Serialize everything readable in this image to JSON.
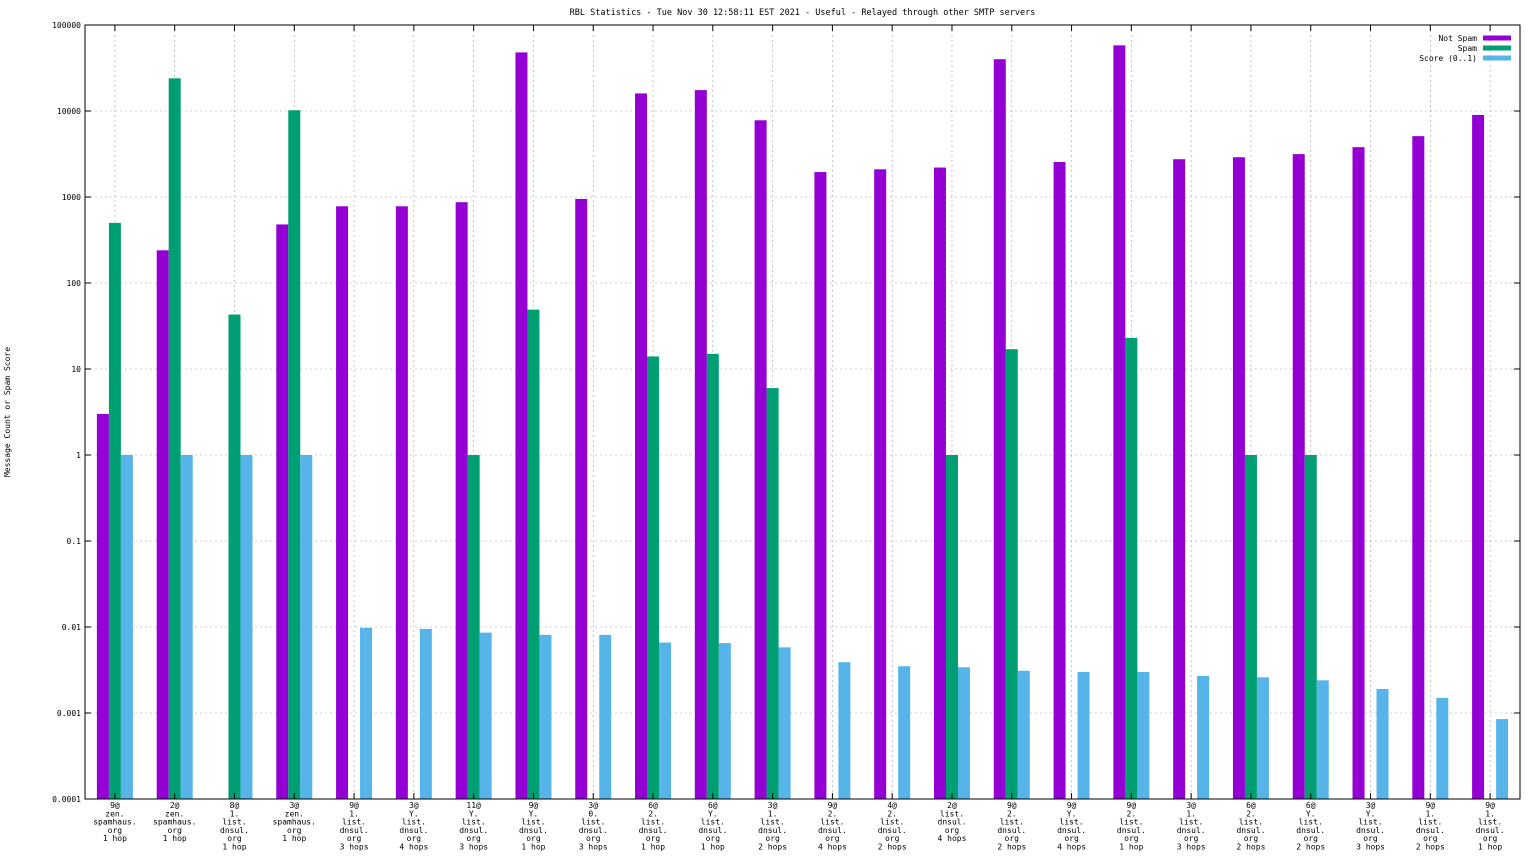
{
  "chart_data": {
    "type": "bar",
    "title": "RBL Statistics - Tue Nov 30 12:58:11 EST 2021 - Useful - Relayed through other SMTP servers",
    "xlabel": "",
    "ylabel": "Message Count or Spam Score",
    "y_scale": "log",
    "ylim": [
      0.0001,
      100000
    ],
    "y_ticks": [
      "0.0001",
      "0.001",
      "0.01",
      "0.1",
      "1",
      "10",
      "100",
      "1000",
      "10000",
      "100000"
    ],
    "grid": true,
    "legend_position": "top-right",
    "categories": [
      [
        "9@",
        "zen.",
        "spamhaus.",
        "org",
        "1 hop"
      ],
      [
        "2@",
        "zen.",
        "spamhaus.",
        "org",
        "1 hop"
      ],
      [
        "8@",
        "1.",
        "list.",
        "dnsul.",
        "org",
        "1 hop"
      ],
      [
        "3@",
        "zen.",
        "spamhaus.",
        "org",
        "1 hop"
      ],
      [
        "9@",
        "1.",
        "list.",
        "dnsul.",
        "org",
        "3 hops"
      ],
      [
        "3@",
        "Y.",
        "list.",
        "dnsul.",
        "org",
        "4 hops"
      ],
      [
        "11@",
        "Y.",
        "list.",
        "dnsul.",
        "org",
        "3 hops"
      ],
      [
        "9@",
        "Y.",
        "list.",
        "dnsul.",
        "org",
        "1 hop"
      ],
      [
        "3@",
        "0.",
        "list.",
        "dnsul.",
        "org",
        "3 hops"
      ],
      [
        "6@",
        "2.",
        "list.",
        "dnsul.",
        "org",
        "1 hop"
      ],
      [
        "6@",
        "Y.",
        "list.",
        "dnsul.",
        "org",
        "1 hop"
      ],
      [
        "3@",
        "1.",
        "list.",
        "dnsul.",
        "org",
        "2 hops"
      ],
      [
        "9@",
        "2.",
        "list.",
        "dnsul.",
        "org",
        "4 hops"
      ],
      [
        "4@",
        "2.",
        "list.",
        "dnsul.",
        "org",
        "2 hops"
      ],
      [
        "2@",
        "list.",
        "dnsul.",
        "org",
        "4 hops"
      ],
      [
        "9@",
        "2.",
        "list.",
        "dnsul.",
        "org",
        "2 hops"
      ],
      [
        "9@",
        "Y.",
        "list.",
        "dnsul.",
        "org",
        "4 hops"
      ],
      [
        "9@",
        "2.",
        "list.",
        "dnsul.",
        "org",
        "1 hop"
      ],
      [
        "3@",
        "1.",
        "list.",
        "dnsul.",
        "org",
        "3 hops"
      ],
      [
        "6@",
        "2.",
        "list.",
        "dnsul.",
        "org",
        "2 hops"
      ],
      [
        "6@",
        "Y.",
        "list.",
        "dnsul.",
        "org",
        "2 hops"
      ],
      [
        "3@",
        "Y.",
        "list.",
        "dnsul.",
        "org",
        "3 hops"
      ],
      [
        "9@",
        "1.",
        "list.",
        "dnsul.",
        "org",
        "2 hops"
      ],
      [
        "9@",
        "1.",
        "list.",
        "dnsul.",
        "org",
        "1 hop"
      ]
    ],
    "series": [
      {
        "name": "Not Spam",
        "color": "#9400d3",
        "values": [
          3,
          240,
          null,
          480,
          780,
          780,
          870,
          48000,
          950,
          16000,
          17500,
          7800,
          1950,
          2100,
          2200,
          40000,
          2550,
          58000,
          2750,
          2900,
          3150,
          3800,
          5100,
          9000
        ]
      },
      {
        "name": "Spam",
        "color": "#009e73",
        "values": [
          500,
          24000,
          43,
          10200,
          null,
          null,
          1,
          49,
          null,
          14,
          15,
          6,
          null,
          null,
          1,
          17,
          null,
          23,
          null,
          1,
          1,
          null,
          null,
          null
        ]
      },
      {
        "name": "Score (0..1)",
        "color": "#56b4e9",
        "values": [
          1,
          1,
          1,
          1,
          0.0098,
          0.0095,
          0.0086,
          0.0081,
          0.0081,
          0.0066,
          0.0065,
          0.0058,
          0.0039,
          0.0035,
          0.0034,
          0.0031,
          0.003,
          0.003,
          0.0027,
          0.0026,
          0.0024,
          0.0019,
          0.0015,
          0.00085
        ]
      }
    ]
  }
}
